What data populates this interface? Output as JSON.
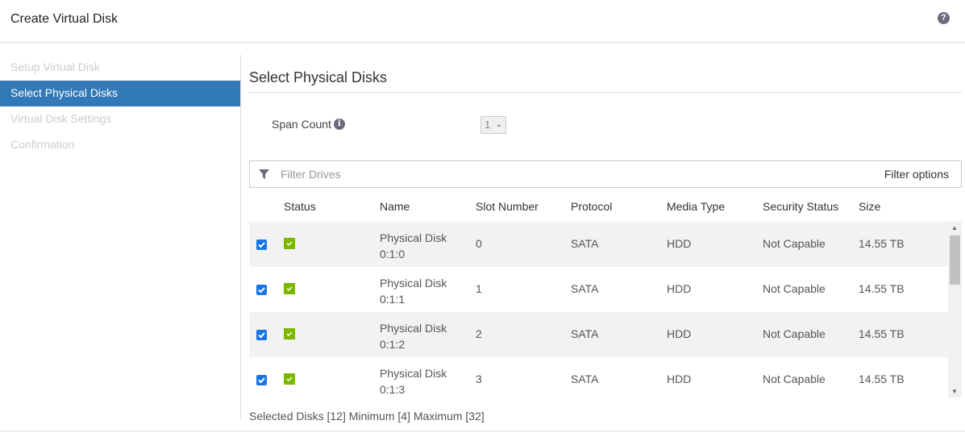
{
  "dialog": {
    "title": "Create Virtual Disk",
    "help_icon": "question-circle-icon"
  },
  "steps": [
    {
      "label": "Setup Virtual Disk",
      "active": false
    },
    {
      "label": "Select Physical Disks",
      "active": true
    },
    {
      "label": "Virtual Disk Settings",
      "active": false
    },
    {
      "label": "Confirmation",
      "active": false
    }
  ],
  "section": {
    "title": "Select Physical Disks"
  },
  "span_count": {
    "label": "Span Count",
    "value": "1"
  },
  "filter": {
    "placeholder": "Filter Drives",
    "options_label": "Filter options"
  },
  "table": {
    "columns": [
      "Status",
      "Name",
      "Slot Number",
      "Protocol",
      "Media Type",
      "Security Status",
      "Size"
    ],
    "rows": [
      {
        "name_line1": "Physical Disk",
        "name_line2": "0:1:0",
        "slot": "0",
        "protocol": "SATA",
        "media": "HDD",
        "security": "Not Capable",
        "size": "14.55 TB",
        "checked": true,
        "status": "ok"
      },
      {
        "name_line1": "Physical Disk",
        "name_line2": "0:1:1",
        "slot": "1",
        "protocol": "SATA",
        "media": "HDD",
        "security": "Not Capable",
        "size": "14.55 TB",
        "checked": true,
        "status": "ok"
      },
      {
        "name_line1": "Physical Disk",
        "name_line2": "0:1:2",
        "slot": "2",
        "protocol": "SATA",
        "media": "HDD",
        "security": "Not Capable",
        "size": "14.55 TB",
        "checked": true,
        "status": "ok"
      },
      {
        "name_line1": "Physical Disk",
        "name_line2": "0:1:3",
        "slot": "3",
        "protocol": "SATA",
        "media": "HDD",
        "security": "Not Capable",
        "size": "14.55 TB",
        "checked": true,
        "status": "ok"
      }
    ]
  },
  "footer": {
    "text": "Selected Disks [12] Minimum [4] Maximum [32]"
  },
  "colors": {
    "accent": "#3279b7",
    "status_ok": "#7ab800",
    "checkbox": "#1a73e8"
  }
}
